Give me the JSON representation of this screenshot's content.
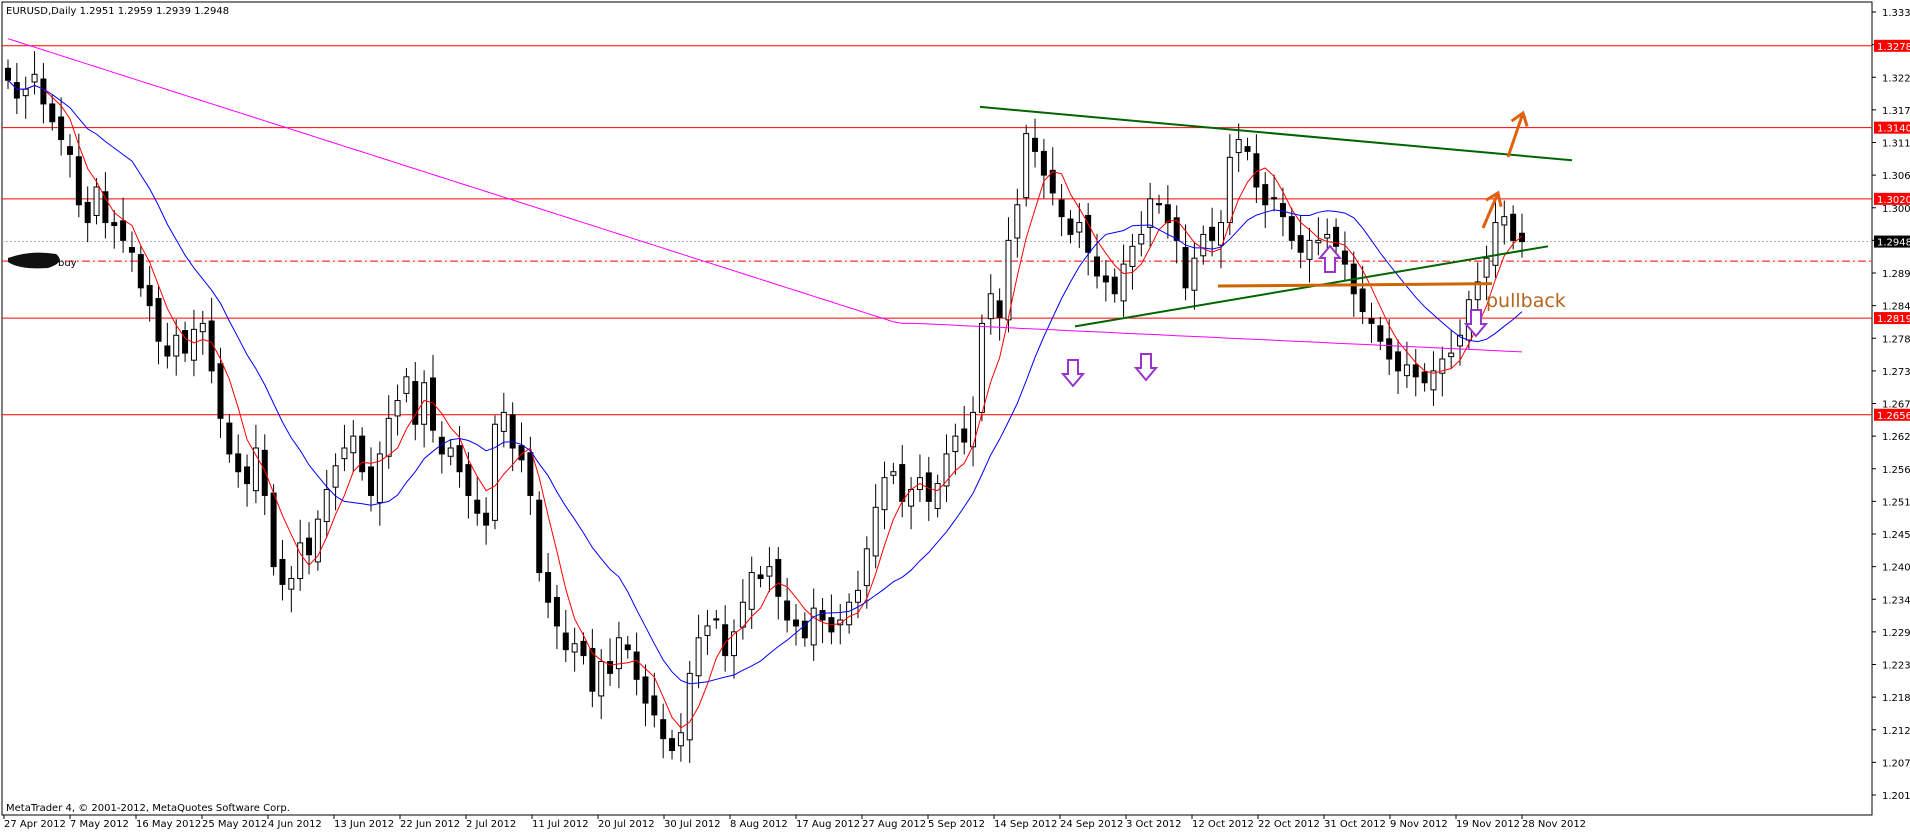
{
  "window": {
    "symbol_header": "EURUSD,Daily  1.2951 1.2959 1.2939 1.2948",
    "copyright": "MetaTrader 4, © 2001-2012, MetaQuotes Software Corp."
  },
  "chart_data": {
    "type": "candlestick",
    "symbol": "EURUSD",
    "timeframe": "Daily",
    "ohlc_latest": {
      "open": 1.2951,
      "high": 1.2959,
      "low": 1.2939,
      "close": 1.2948
    },
    "ylim": [
      1.2015,
      1.3335
    ],
    "grid": false,
    "y_ticks": [
      "1.3335",
      "1.3280",
      "1.3225",
      "1.3170",
      "1.3115",
      "1.3060",
      "1.3005",
      "1.2950",
      "1.2895",
      "1.2840",
      "1.2785",
      "1.2730",
      "1.2675",
      "1.2620",
      "1.2565",
      "1.2510",
      "1.2455",
      "1.2400",
      "1.2345",
      "1.2290",
      "1.2235",
      "1.2180",
      "1.2125",
      "1.2070",
      "1.2015"
    ],
    "x_ticks": [
      "27 Apr 2012",
      "7 May 2012",
      "16 May 2012",
      "25 May 2012",
      "4 Jun 2012",
      "13 Jun 2012",
      "22 Jun 2012",
      "2 Jul 2012",
      "11 Jul 2012",
      "20 Jul 2012",
      "30 Jul 2012",
      "8 Aug 2012",
      "17 Aug 2012",
      "27 Aug 2012",
      "5 Sep 2012",
      "14 Sep 2012",
      "24 Sep 2012",
      "3 Oct 2012",
      "12 Oct 2012",
      "22 Oct 2012",
      "31 Oct 2012",
      "9 Nov 2012",
      "19 Nov 2012",
      "28 Nov 2012"
    ],
    "horizontal_levels": [
      {
        "value": 1.3278,
        "label": "1.3278"
      },
      {
        "value": 1.314,
        "label": "1.3140"
      },
      {
        "value": 1.302,
        "label": "1.3020"
      },
      {
        "value": 1.2819,
        "label": "1.2819"
      },
      {
        "value": 1.2656,
        "label": "1.2656"
      }
    ],
    "current_price": {
      "value": 1.2948,
      "label": "1.2948"
    },
    "annotations": {
      "pullback_text": "pullback",
      "buy_text": "buy"
    },
    "series_close": [
      1.322,
      1.319,
      1.3205,
      1.323,
      1.318,
      1.315,
      1.312,
      1.3095,
      1.301,
      1.298,
      1.304,
      1.298,
      1.2975,
      1.295,
      1.293,
      1.287,
      1.284,
      1.278,
      1.2755,
      1.279,
      1.276,
      1.28,
      1.281,
      1.273,
      1.265,
      1.259,
      1.256,
      1.254,
      1.26,
      1.252,
      1.24,
      1.237,
      1.238,
      1.244,
      1.242,
      1.248,
      1.253,
      1.257,
      1.26,
      1.262,
      1.256,
      1.252,
      1.259,
      1.265,
      1.268,
      1.272,
      1.264,
      1.271,
      1.263,
      1.259,
      1.26,
      1.256,
      1.252,
      1.249,
      1.247,
      1.264,
      1.266,
      1.26,
      1.258,
      1.252,
      1.239,
      1.234,
      1.23,
      1.226,
      1.227,
      1.225,
      1.219,
      1.224,
      1.222,
      1.228,
      1.226,
      1.221,
      1.217,
      1.215,
      1.211,
      1.209,
      1.212,
      1.222,
      1.228,
      1.23,
      1.231,
      1.225,
      1.229,
      1.234,
      1.239,
      1.238,
      1.24,
      1.235,
      1.231,
      1.23,
      1.228,
      1.233,
      1.231,
      1.229,
      1.231,
      1.234,
      1.236,
      1.243,
      1.25,
      1.255,
      1.256,
      1.251,
      1.253,
      1.255,
      1.251,
      1.254,
      1.259,
      1.262,
      1.261,
      1.266,
      1.281,
      1.286,
      1.282,
      1.295,
      1.301,
      1.313,
      1.31,
      1.306,
      1.303,
      1.299,
      1.296,
      1.298,
      1.293,
      1.289,
      1.288,
      1.286,
      1.291,
      1.294,
      1.296,
      1.302,
      1.301,
      1.298,
      1.295,
      1.287,
      1.292,
      1.296,
      1.295,
      1.298,
      1.309,
      1.312,
      1.31,
      1.304,
      1.301,
      1.302,
      1.299,
      1.295,
      1.293,
      1.295,
      1.295,
      1.296,
      1.294,
      1.291,
      1.286,
      1.283,
      1.281,
      1.278,
      1.275,
      1.273,
      1.274,
      1.272,
      1.271,
      1.273,
      1.275,
      1.276,
      1.279,
      1.285,
      1.288,
      1.292,
      1.298,
      1.299,
      1.295,
      1.2948
    ],
    "series": [
      {
        "name": "",
        "color": "#ff0000"
      },
      {
        "name": "",
        "color": "#0000ff"
      },
      {
        "name": "",
        "color": "#ff00ff"
      }
    ],
    "trendline_colors": {
      "triangle": "#006400",
      "support": "#cc6600",
      "arrows_up_orange": "#e06010",
      "arrows_purple": "#9933cc"
    }
  }
}
